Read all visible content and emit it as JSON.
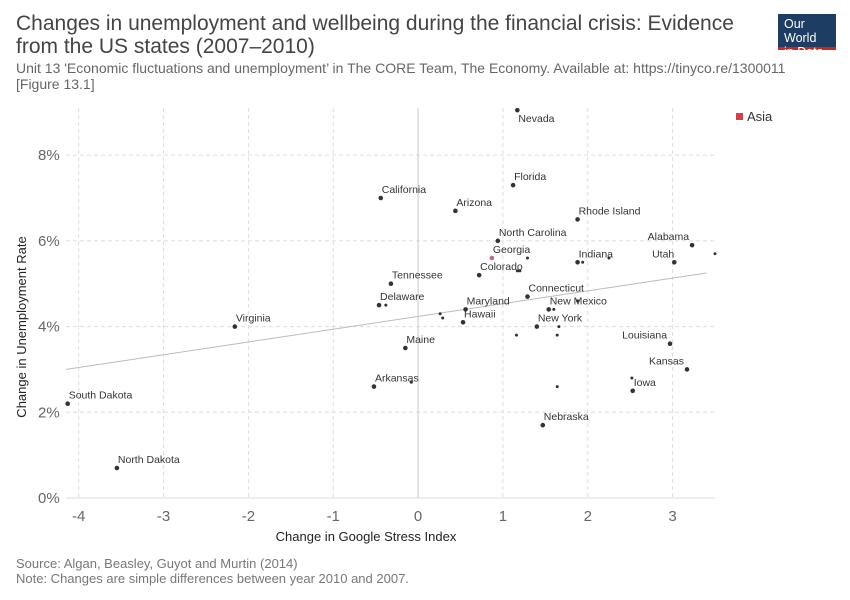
{
  "title": "Changes in unemployment and wellbeing during the financial crisis: Evidence from the US states (2007–2010)",
  "subtitle_lines": [
    "Unit 13 'Economic fluctuations and unemployment’ in The CORE Team, The Economy. Available at: https://tinyco.re/1300011",
    "[Figure 13.1]"
  ],
  "logo": {
    "line1": "Our World",
    "line2": "in Data"
  },
  "footer": {
    "source": "Source: Algan, Beasley, Guyot and Murtin (2014)",
    "note": "Note: Changes are simple differences between year 2010 and 2007."
  },
  "chart_data": {
    "type": "scatter",
    "xlabel": "Change in Google Stress Index",
    "ylabel": "Change in Unemployment Rate",
    "xlim": [
      -4.15,
      3.5
    ],
    "ylim": [
      0,
      9.1
    ],
    "x_ticks": [
      -4,
      -3,
      -2,
      -1,
      0,
      1,
      2,
      3
    ],
    "x_tick_labels": [
      "-4",
      "-3",
      "-2",
      "-1",
      "0",
      "1",
      "2",
      "3"
    ],
    "y_ticks": [
      0,
      2,
      4,
      6,
      8
    ],
    "y_tick_labels": [
      "0%",
      "2%",
      "4%",
      "6%",
      "8%"
    ],
    "grid": true,
    "legend": {
      "position": "top-right",
      "entries": [
        {
          "name": "Asia",
          "color": "#d1414d"
        }
      ]
    },
    "trend_line": {
      "x": [
        -4.15,
        3.4
      ],
      "y": [
        3.0,
        5.25
      ],
      "color": "#bbbbbb"
    },
    "point_color": "#333333",
    "highlight_color": "#c26c83",
    "points": [
      {
        "label": "Nevada",
        "x": 1.17,
        "y": 9.05
      },
      {
        "label": "Florida",
        "x": 1.12,
        "y": 7.3
      },
      {
        "label": "California",
        "x": -0.44,
        "y": 7.0
      },
      {
        "label": "Arizona",
        "x": 0.44,
        "y": 6.7
      },
      {
        "label": "Rhode Island",
        "x": 1.88,
        "y": 6.5
      },
      {
        "label": "North Carolina",
        "x": 0.94,
        "y": 6.0
      },
      {
        "label": "Alabama",
        "x": 3.23,
        "y": 5.9
      },
      {
        "label": "Georgia",
        "x": 0.87,
        "y": 5.6,
        "highlight": true
      },
      {
        "label": "Indiana",
        "x": 1.88,
        "y": 5.5
      },
      {
        "label": "Utah",
        "x": 3.02,
        "y": 5.5
      },
      {
        "label": "Colorado",
        "x": 0.72,
        "y": 5.2
      },
      {
        "label": "Tennessee",
        "x": -0.32,
        "y": 5.0
      },
      {
        "label": "Connecticut",
        "x": 1.29,
        "y": 4.7
      },
      {
        "label": "Delaware",
        "x": -0.46,
        "y": 4.5
      },
      {
        "label": "New Mexico",
        "x": 1.54,
        "y": 4.4
      },
      {
        "label": "Maryland",
        "x": 0.56,
        "y": 4.4
      },
      {
        "label": "Hawaii",
        "x": 0.53,
        "y": 4.1
      },
      {
        "label": "New York",
        "x": 1.4,
        "y": 4.0
      },
      {
        "label": "Virginia",
        "x": -2.16,
        "y": 4.0
      },
      {
        "label": "Louisiana",
        "x": 2.97,
        "y": 3.6
      },
      {
        "label": "Maine",
        "x": -0.15,
        "y": 3.5
      },
      {
        "label": "Kansas",
        "x": 3.17,
        "y": 3.0
      },
      {
        "label": "Arkansas",
        "x": -0.52,
        "y": 2.6
      },
      {
        "label": "Iowa",
        "x": 2.53,
        "y": 2.5
      },
      {
        "label": "South Dakota",
        "x": -4.13,
        "y": 2.2
      },
      {
        "label": "Nebraska",
        "x": 1.47,
        "y": 1.7
      },
      {
        "label": "North Dakota",
        "x": -3.55,
        "y": 0.7
      },
      {
        "label": "",
        "x": 1.29,
        "y": 5.6
      },
      {
        "label": "",
        "x": 1.2,
        "y": 5.3
      },
      {
        "label": "",
        "x": 1.17,
        "y": 5.3
      },
      {
        "label": "",
        "x": 1.94,
        "y": 5.5
      },
      {
        "label": "",
        "x": 2.25,
        "y": 5.6
      },
      {
        "label": "",
        "x": 3.5,
        "y": 5.7
      },
      {
        "label": "",
        "x": 1.6,
        "y": 4.4
      },
      {
        "label": "",
        "x": 1.88,
        "y": 4.6
      },
      {
        "label": "",
        "x": 1.66,
        "y": 4.0
      },
      {
        "label": "",
        "x": -0.38,
        "y": 4.5
      },
      {
        "label": "",
        "x": 0.26,
        "y": 4.3
      },
      {
        "label": "",
        "x": 0.29,
        "y": 4.2
      },
      {
        "label": "",
        "x": 1.16,
        "y": 3.8
      },
      {
        "label": "",
        "x": 1.64,
        "y": 3.8
      },
      {
        "label": "",
        "x": -0.08,
        "y": 2.7
      },
      {
        "label": "",
        "x": 2.52,
        "y": 2.8
      },
      {
        "label": "",
        "x": 1.64,
        "y": 2.6
      }
    ]
  }
}
